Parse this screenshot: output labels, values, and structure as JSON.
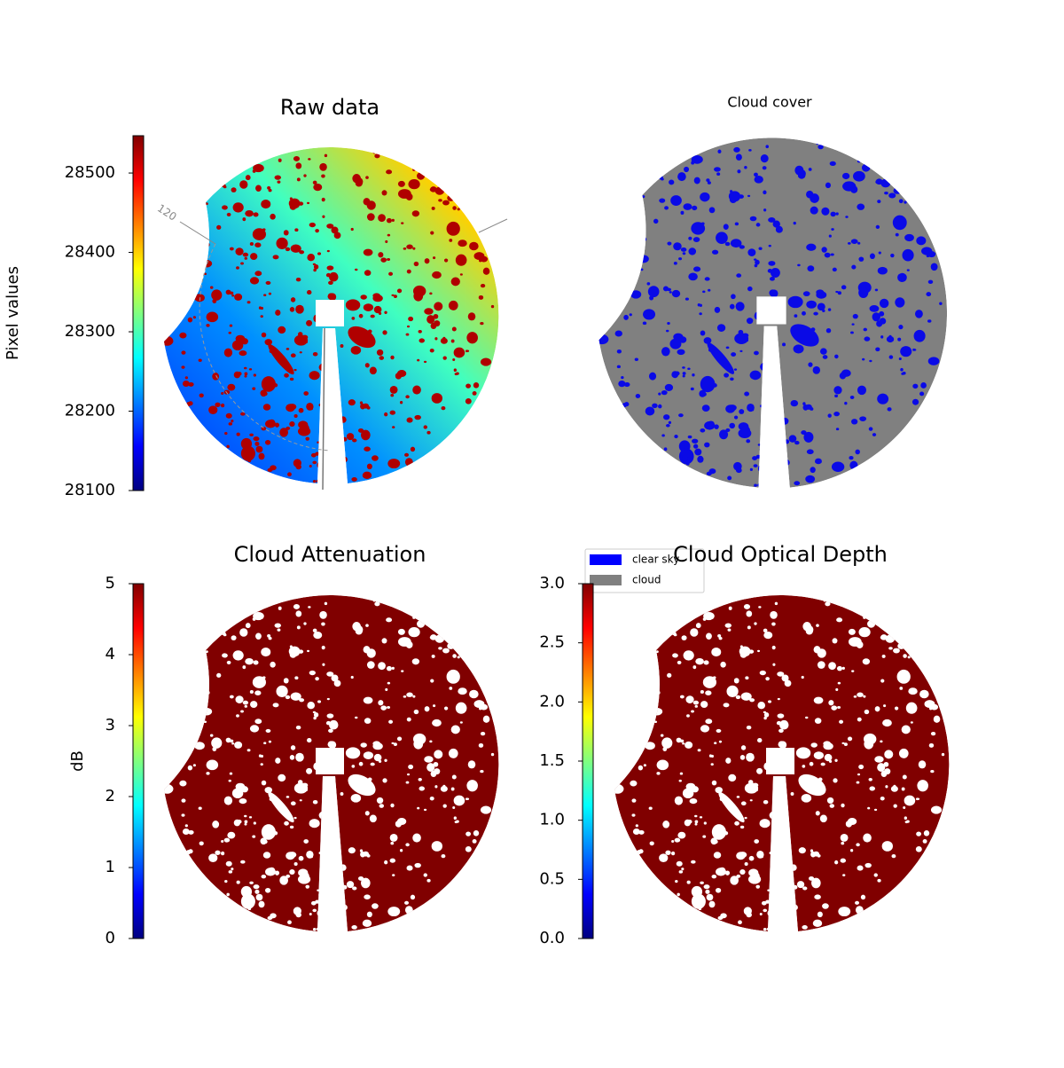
{
  "chart_data": [
    {
      "type": "image",
      "title": "Raw data",
      "annotation": "120",
      "colormap": "jet",
      "colorbar": {
        "label": "Pixel values",
        "ylim": [
          28100,
          28547
        ],
        "yticks": [
          28100,
          28200,
          28300,
          28400,
          28500
        ]
      }
    },
    {
      "type": "image",
      "title": "Cloud cover",
      "legend": "upper left",
      "series": [
        {
          "name": "clear sky",
          "color": "#0000ff"
        },
        {
          "name": "cloud",
          "color": "#808080"
        }
      ]
    },
    {
      "type": "image",
      "title": "Cloud Attenuation",
      "colormap": "jet",
      "colorbar": {
        "label": "dB",
        "ylim": [
          0,
          5
        ],
        "yticks": [
          0,
          1,
          2,
          3,
          4,
          5
        ]
      }
    },
    {
      "type": "image",
      "title": "Cloud Optical Depth",
      "colormap": "jet",
      "colorbar": {
        "ylim": [
          0,
          3
        ],
        "yticks": [
          {
            "value": 0,
            "label": "0.0"
          },
          0.5,
          {
            "value": 1,
            "label": "1.0"
          },
          1.5,
          {
            "value": 2,
            "label": "2.0"
          },
          2.5,
          {
            "value": 3,
            "label": "3.0"
          }
        ]
      }
    }
  ]
}
